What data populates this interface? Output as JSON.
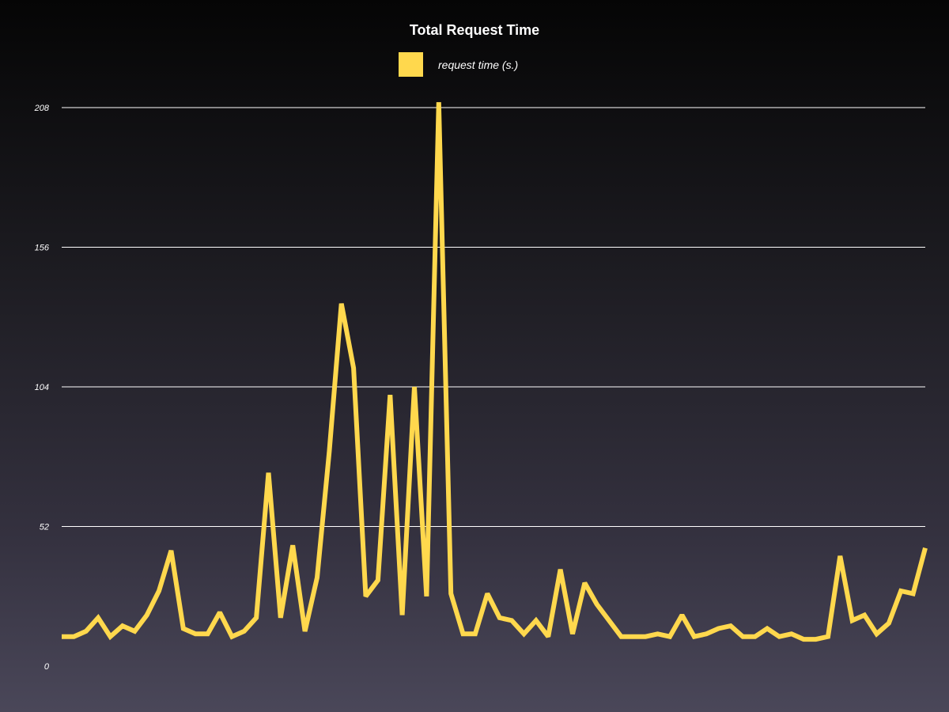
{
  "chart_data": {
    "type": "line",
    "title": "Total Request Time",
    "xlabel": "",
    "ylabel": "",
    "ylim": [
      0,
      208
    ],
    "yticks": [
      0,
      52,
      104,
      156,
      208
    ],
    "grid": true,
    "legend_position": "top-center",
    "series": [
      {
        "name": "request time (s.)",
        "color": "#ffd84d",
        "values": [
          11,
          11,
          13,
          18,
          11,
          15,
          13,
          19,
          28,
          43,
          14,
          12,
          12,
          20,
          11,
          13,
          18,
          72,
          18,
          45,
          13,
          33,
          80,
          135,
          111,
          26,
          32,
          101,
          19,
          104,
          26,
          210,
          27,
          12,
          12,
          27,
          18,
          17,
          12,
          17,
          11,
          36,
          12,
          31,
          23,
          17,
          11,
          11,
          11,
          12,
          11,
          19,
          11,
          12,
          14,
          15,
          11,
          11,
          14,
          11,
          12,
          10,
          10,
          11,
          41,
          17,
          19,
          12,
          16,
          28,
          27,
          44
        ]
      }
    ]
  }
}
